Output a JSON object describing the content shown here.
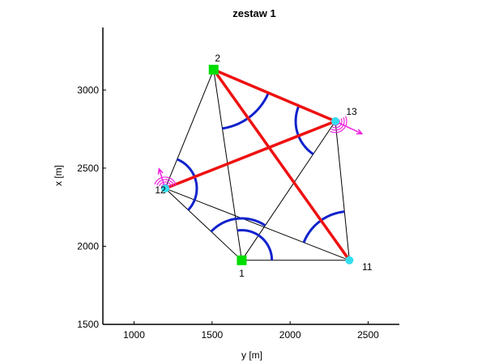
{
  "chart_data": {
    "type": "scatter",
    "title": "zestaw 1",
    "xlabel": "y [m]",
    "ylabel": "x [m]",
    "xlim": [
      800,
      2700
    ],
    "ylim": [
      1500,
      3400
    ],
    "xticks": [
      1000,
      1500,
      2000,
      2500
    ],
    "yticks": [
      1500,
      2000,
      2500,
      3000
    ],
    "grid": false,
    "points": [
      {
        "id": "1",
        "label": "1",
        "x": 1690,
        "y": 1910,
        "kind": "fixed",
        "color": "#00dd00"
      },
      {
        "id": "2",
        "label": "2",
        "x": 1510,
        "y": 3130,
        "kind": "fixed",
        "color": "#00dd00"
      },
      {
        "id": "11",
        "label": "11",
        "x": 2380,
        "y": 1910,
        "kind": "unknown",
        "color": "#33ddee"
      },
      {
        "id": "12",
        "label": "12",
        "x": 1200,
        "y": 2370,
        "kind": "unknown",
        "color": "#33ddee"
      },
      {
        "id": "13",
        "label": "13",
        "x": 2290,
        "y": 2800,
        "kind": "unknown",
        "color": "#33ddee"
      }
    ],
    "observation_lines": [
      [
        "1",
        "2"
      ],
      [
        "1",
        "12"
      ],
      [
        "1",
        "13"
      ],
      [
        "1",
        "11"
      ],
      [
        "2",
        "12"
      ],
      [
        "2",
        "11"
      ],
      [
        "12",
        "11"
      ],
      [
        "13",
        "11"
      ]
    ],
    "measured_distances": [
      [
        "2",
        "13"
      ],
      [
        "2",
        "11"
      ],
      [
        "12",
        "13"
      ]
    ],
    "angles": [
      {
        "vertex": "2",
        "from": "1",
        "to": "13",
        "r": 0.45
      },
      {
        "vertex": "12",
        "from": "2",
        "to": "1",
        "r": 0.3
      },
      {
        "vertex": "1",
        "from": "12",
        "to": "13",
        "r": 0.4
      },
      {
        "vertex": "13",
        "from": "2",
        "to": "1",
        "r": 0.3
      },
      {
        "vertex": "11",
        "from": "12",
        "to": "13",
        "r": 0.35
      },
      {
        "vertex": "1",
        "from": "11",
        "to": "2",
        "r": 0.28
      }
    ],
    "direction_markers": [
      {
        "point": "12",
        "arrow_dx": -40,
        "arrow_dy": 125
      },
      {
        "point": "13",
        "arrow_dx": 170,
        "arrow_dy": -80
      }
    ],
    "colors": {
      "observation": "#000000",
      "distance": "#ee1111",
      "angle": "#1122cc",
      "direction": "#ee22dd",
      "axes": "#000000"
    }
  }
}
